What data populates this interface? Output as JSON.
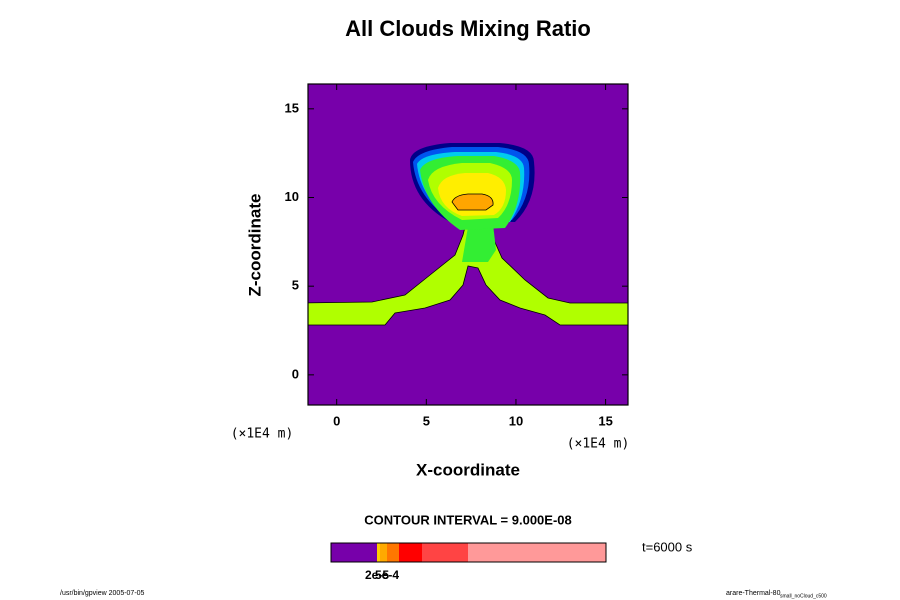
{
  "chart_data": {
    "type": "contour",
    "title": "All Clouds Mixing Ratio",
    "xlabel": "X-coordinate",
    "ylabel": "Z-coordinate",
    "x_unit": "(×1E4 m)",
    "y_unit": "(×1E4 m)",
    "xlim": [
      -1.6,
      16.25
    ],
    "ylim": [
      -1.7,
      16.4
    ],
    "xticks": [
      0,
      5,
      10,
      15
    ],
    "yticks": [
      0,
      5,
      10,
      15
    ],
    "contour_interval_label": "CONTOUR INTERVAL = 9.000E-08",
    "time_label": "t=6000 s",
    "colorbar": {
      "colors": [
        "#7700aa",
        "#ffcc00",
        "#ffaa00",
        "#ff7700",
        "#ff0000",
        "#ff4444",
        "#ff9999"
      ],
      "labels": [
        "2e-5",
        "5e-4"
      ]
    }
  },
  "footer": {
    "left": "/usr/bin/gpview 2005-07-05",
    "right": "arare-Thermal-80",
    "right_subscript": "small_noCloud_c500"
  }
}
